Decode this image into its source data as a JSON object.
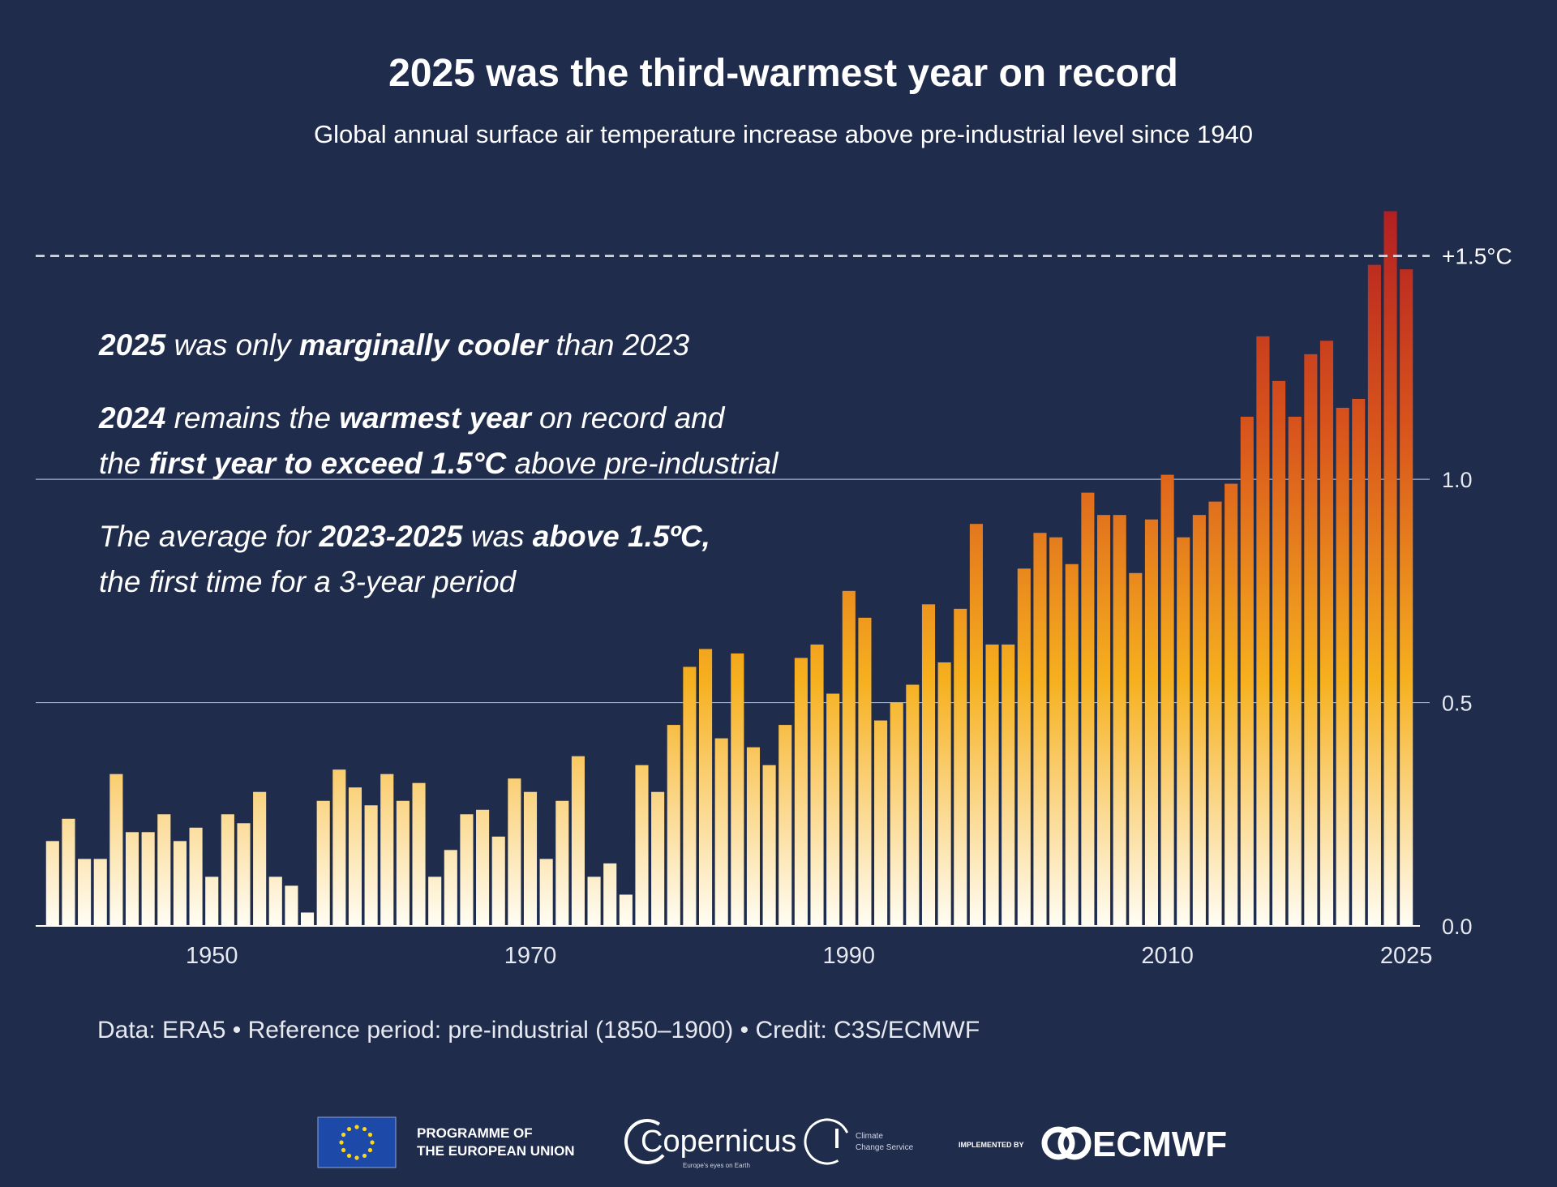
{
  "chart_data": {
    "type": "bar",
    "title": "2025 was the third-warmest year on record",
    "subtitle": "Global annual surface air temperature increase above pre-industrial level since 1940",
    "x": [
      1940,
      1941,
      1942,
      1943,
      1944,
      1945,
      1946,
      1947,
      1948,
      1949,
      1950,
      1951,
      1952,
      1953,
      1954,
      1955,
      1956,
      1957,
      1958,
      1959,
      1960,
      1961,
      1962,
      1963,
      1964,
      1965,
      1966,
      1967,
      1968,
      1969,
      1970,
      1971,
      1972,
      1973,
      1974,
      1975,
      1976,
      1977,
      1978,
      1979,
      1980,
      1981,
      1982,
      1983,
      1984,
      1985,
      1986,
      1987,
      1988,
      1989,
      1990,
      1991,
      1992,
      1993,
      1994,
      1995,
      1996,
      1997,
      1998,
      1999,
      2000,
      2001,
      2002,
      2003,
      2004,
      2005,
      2006,
      2007,
      2008,
      2009,
      2010,
      2011,
      2012,
      2013,
      2014,
      2015,
      2016,
      2017,
      2018,
      2019,
      2020,
      2021,
      2022,
      2023,
      2024,
      2025
    ],
    "values": [
      0.19,
      0.24,
      0.15,
      0.15,
      0.34,
      0.21,
      0.21,
      0.25,
      0.19,
      0.22,
      0.11,
      0.25,
      0.23,
      0.3,
      0.11,
      0.09,
      0.03,
      0.28,
      0.35,
      0.31,
      0.27,
      0.34,
      0.28,
      0.32,
      0.11,
      0.17,
      0.25,
      0.26,
      0.2,
      0.33,
      0.3,
      0.15,
      0.28,
      0.38,
      0.11,
      0.14,
      0.07,
      0.36,
      0.3,
      0.45,
      0.58,
      0.62,
      0.42,
      0.61,
      0.4,
      0.36,
      0.45,
      0.6,
      0.63,
      0.52,
      0.75,
      0.69,
      0.46,
      0.5,
      0.54,
      0.72,
      0.59,
      0.71,
      0.9,
      0.63,
      0.63,
      0.8,
      0.88,
      0.87,
      0.81,
      0.97,
      0.92,
      0.92,
      0.79,
      0.91,
      1.01,
      0.87,
      0.92,
      0.95,
      0.99,
      1.14,
      1.32,
      1.22,
      1.14,
      1.28,
      1.31,
      1.16,
      1.18,
      1.48,
      1.6,
      1.47
    ],
    "gradient": [
      "#fffdf4",
      "#f6b01e",
      "#d9561c",
      "#b01a22"
    ],
    "xlim": [
      1939.5,
      2025.5
    ],
    "xticks": [
      1950,
      1970,
      1990,
      2010,
      2025
    ],
    "ylim": [
      0,
      1.65
    ],
    "yticks": [
      {
        "value": 0,
        "label": "0.0"
      },
      0.5,
      {
        "value": 1,
        "label": "1.0"
      }
    ],
    "grid": true,
    "reference_lines": [
      {
        "value": 1.5,
        "label": "+1.5°C"
      }
    ],
    "annotations": [
      [
        [
          {
            "text": "2025",
            "bold": true
          },
          " was only ",
          {
            "text": "marginally cooler",
            "bold": true
          },
          " than 2023"
        ]
      ],
      [
        [
          {
            "text": "2024",
            "bold": true
          },
          " remains the ",
          {
            "text": "warmest year",
            "bold": true
          },
          " on record and"
        ],
        [
          "the ",
          {
            "text": "first year to exceed 1.5°C",
            "bold": true
          },
          " above pre-industrial"
        ]
      ],
      [
        [
          "The average for ",
          {
            "text": "2023-2025",
            "bold": true
          },
          " was ",
          {
            "text": "above 1.5ºC,",
            "bold": true
          }
        ],
        [
          "the first time for a 3-year period"
        ]
      ]
    ],
    "source": "Data: ERA5 • Reference period: pre-industrial (1850–1900) • Credit: C3S/ECMWF"
  },
  "logos": {
    "eu": [
      "PROGRAMME OF",
      "THE EUROPEAN UNION"
    ],
    "copernicus": "Copernicus",
    "copernicus_tagline": "Europe's eyes on Earth",
    "c3s": [
      "Climate",
      "Change Service"
    ],
    "implemented_by": "IMPLEMENTED BY",
    "ecmwf": "ECMWF"
  }
}
